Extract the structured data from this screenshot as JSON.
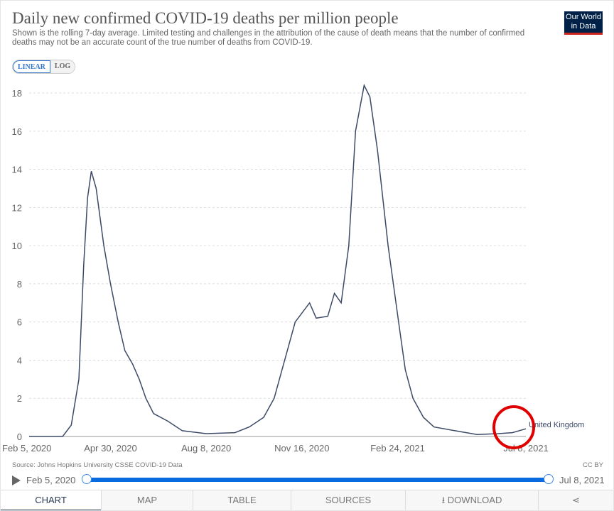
{
  "header": {
    "title": "Daily new confirmed COVID-19 deaths per million people",
    "subtitle": "Shown is the rolling 7-day average. Limited testing and challenges in the attribution of the cause of death means that the number of confirmed deaths may not be an accurate count of the true number of deaths from COVID-19.",
    "logo": "Our World in Data"
  },
  "scale_toggle": {
    "linear": "LINEAR",
    "log": "LOG",
    "selected": "LINEAR"
  },
  "chart_data": {
    "type": "line",
    "title": "Daily new confirmed COVID-19 deaths per million people",
    "xlabel": "",
    "ylabel": "",
    "ylim": [
      0,
      18
    ],
    "yticks": [
      0,
      2,
      4,
      6,
      8,
      10,
      12,
      14,
      16,
      18
    ],
    "xlim": [
      "2020-02-05",
      "2021-07-08"
    ],
    "xticks": [
      {
        "date": "2020-02-05",
        "label": "Feb 5, 2020"
      },
      {
        "date": "2020-04-30",
        "label": "Apr 30, 2020"
      },
      {
        "date": "2020-08-08",
        "label": "Aug 8, 2020"
      },
      {
        "date": "2020-11-16",
        "label": "Nov 16, 2020"
      },
      {
        "date": "2021-02-24",
        "label": "Feb 24, 2021"
      },
      {
        "date": "2021-07-08",
        "label": "Jul 8, 2021"
      }
    ],
    "grid": "horizontal dashed",
    "series": [
      {
        "name": "United Kingdom",
        "color": "#3c4a66",
        "points": [
          [
            "2020-02-05",
            0
          ],
          [
            "2020-03-11",
            0
          ],
          [
            "2020-03-20",
            0.6
          ],
          [
            "2020-03-28",
            3
          ],
          [
            "2020-04-02",
            9
          ],
          [
            "2020-04-06",
            12.5
          ],
          [
            "2020-04-10",
            13.9
          ],
          [
            "2020-04-15",
            13
          ],
          [
            "2020-04-23",
            10
          ],
          [
            "2020-04-30",
            8
          ],
          [
            "2020-05-08",
            6
          ],
          [
            "2020-05-15",
            4.5
          ],
          [
            "2020-05-23",
            3.8
          ],
          [
            "2020-05-30",
            3
          ],
          [
            "2020-06-06",
            2
          ],
          [
            "2020-06-14",
            1.2
          ],
          [
            "2020-06-29",
            0.8
          ],
          [
            "2020-07-14",
            0.3
          ],
          [
            "2020-08-08",
            0.15
          ],
          [
            "2020-09-07",
            0.2
          ],
          [
            "2020-09-22",
            0.5
          ],
          [
            "2020-10-07",
            1
          ],
          [
            "2020-10-18",
            2
          ],
          [
            "2020-10-29",
            4
          ],
          [
            "2020-11-09",
            6
          ],
          [
            "2020-11-24",
            7
          ],
          [
            "2020-12-01",
            6.2
          ],
          [
            "2020-12-13",
            6.3
          ],
          [
            "2020-12-20",
            7.5
          ],
          [
            "2020-12-27",
            7
          ],
          [
            "2021-01-04",
            10
          ],
          [
            "2021-01-11",
            16
          ],
          [
            "2021-01-20",
            18.4
          ],
          [
            "2021-01-26",
            17.8
          ],
          [
            "2021-02-03",
            15
          ],
          [
            "2021-02-14",
            10
          ],
          [
            "2021-02-25",
            6
          ],
          [
            "2021-03-04",
            3.5
          ],
          [
            "2021-03-12",
            2
          ],
          [
            "2021-03-23",
            1
          ],
          [
            "2021-04-03",
            0.5
          ],
          [
            "2021-04-25",
            0.3
          ],
          [
            "2021-05-18",
            0.1
          ],
          [
            "2021-06-09",
            0.15
          ],
          [
            "2021-06-24",
            0.2
          ],
          [
            "2021-07-08",
            0.4
          ]
        ]
      }
    ],
    "annotation_color": "#e00000"
  },
  "footer": {
    "source": "Source: Johns Hopkins University CSSE COVID-19 Data",
    "license": "CC BY"
  },
  "timeline": {
    "start": "Feb 5, 2020",
    "end": "Jul 8, 2021"
  },
  "tabs": [
    {
      "label": "CHART"
    },
    {
      "label": "MAP"
    },
    {
      "label": "TABLE"
    },
    {
      "label": "SOURCES"
    },
    {
      "label": "DOWNLOAD"
    },
    {
      "label": ""
    }
  ]
}
